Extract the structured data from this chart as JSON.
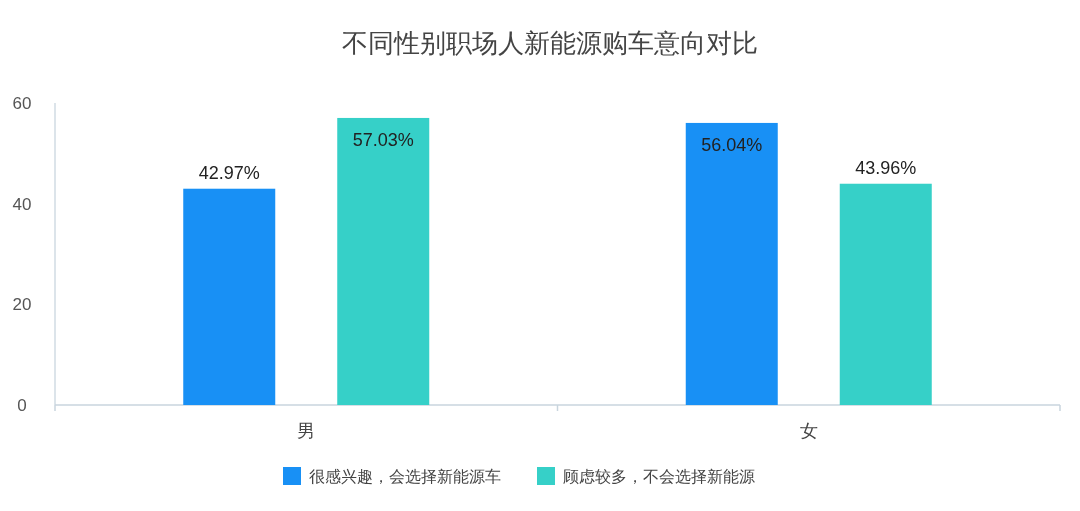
{
  "chart_data": {
    "type": "bar",
    "title": "不同性别职场人新能源购车意向对比",
    "categories": [
      "男",
      "女"
    ],
    "series": [
      {
        "name": "很感兴趣，会选择新能源车",
        "color": "#1890f5",
        "values": [
          42.97,
          56.04
        ],
        "value_labels": [
          "42.97%",
          "56.04%"
        ]
      },
      {
        "name": "顾虑较多，不会选择新能源",
        "color": "#36d0c8",
        "values": [
          57.03,
          43.96
        ],
        "value_labels": [
          "57.03%",
          "43.96%"
        ]
      }
    ],
    "ylim": [
      0,
      60
    ],
    "yticks": [
      0,
      20,
      40,
      60
    ],
    "grid": false,
    "legend": "bottom"
  }
}
